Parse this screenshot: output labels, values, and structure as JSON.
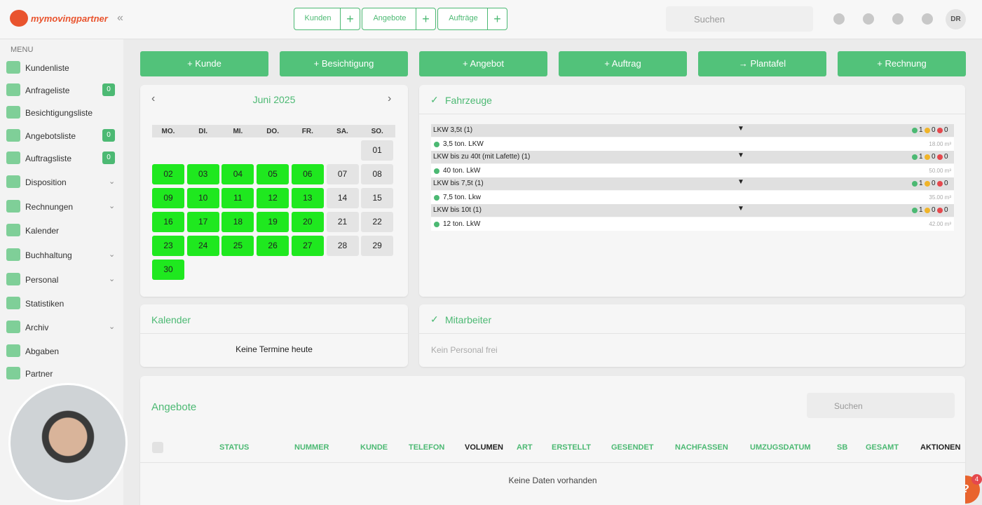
{
  "header": {
    "logo": "mymovingpartner",
    "collapse": "«",
    "tabs": [
      "Kunden",
      "Angebote",
      "Aufträge"
    ],
    "search": "Suchen",
    "avatar": "DR"
  },
  "sidebar": {
    "menu_label": "MENU",
    "items": [
      {
        "label": "Kundenliste"
      },
      {
        "label": "Anfrageliste",
        "badge": 0
      },
      {
        "label": "Besichtigungsliste"
      },
      {
        "label": "Angebotsliste",
        "badge": 0
      },
      {
        "label": "Auftragsliste",
        "badge": 0
      },
      {
        "label": "Disposition",
        "expandable": true
      },
      {
        "label": "Rechnungen",
        "expandable": true
      },
      {
        "label": "Kalender"
      },
      {
        "label": "Buchhaltung",
        "expandable": true
      },
      {
        "label": "Personal",
        "expandable": true
      },
      {
        "label": "Statistiken"
      },
      {
        "label": "Archiv",
        "expandable": true
      },
      {
        "label": "Abgaben"
      },
      {
        "label": "Partner"
      }
    ]
  },
  "actions": [
    "+ Kunde",
    "+ Besichtigung",
    "+ Angebot",
    "+ Auftrag",
    "→ Plantafel",
    "+ Rechnung"
  ],
  "calendar": {
    "month": "Juni 2025",
    "weekdays": [
      "MO.",
      "DI.",
      "MI.",
      "DO.",
      "FR.",
      "SA.",
      "SO."
    ],
    "leading_blanks": 6,
    "days": [
      {
        "label": "01",
        "busy": false
      },
      {
        "label": "02",
        "busy": true
      },
      {
        "label": "03",
        "busy": true
      },
      {
        "label": "04",
        "busy": true
      },
      {
        "label": "05",
        "busy": true
      },
      {
        "label": "06",
        "busy": true
      },
      {
        "label": "07",
        "busy": false
      },
      {
        "label": "08",
        "busy": false
      },
      {
        "label": "09",
        "busy": true
      },
      {
        "label": "10",
        "busy": true
      },
      {
        "label": "11",
        "busy": true
      },
      {
        "label": "12",
        "busy": true
      },
      {
        "label": "13",
        "busy": true
      },
      {
        "label": "14",
        "busy": false
      },
      {
        "label": "15",
        "busy": false
      },
      {
        "label": "16",
        "busy": true
      },
      {
        "label": "17",
        "busy": true
      },
      {
        "label": "18",
        "busy": true
      },
      {
        "label": "19",
        "busy": true
      },
      {
        "label": "20",
        "busy": true
      },
      {
        "label": "21",
        "busy": false
      },
      {
        "label": "22",
        "busy": false
      },
      {
        "label": "23",
        "busy": true
      },
      {
        "label": "24",
        "busy": true
      },
      {
        "label": "25",
        "busy": true
      },
      {
        "label": "26",
        "busy": true
      },
      {
        "label": "27",
        "busy": true
      },
      {
        "label": "28",
        "busy": false
      },
      {
        "label": "29",
        "busy": false
      },
      {
        "label": "30",
        "busy": true
      }
    ]
  },
  "vehicles": {
    "title": "Fahrzeuge",
    "groups": [
      {
        "name": "LKW 3,5t (1)",
        "green": 1,
        "yellow": 0,
        "red": 0,
        "vehicle": "3,5 ton. LKW",
        "volume": "18.00 m³"
      },
      {
        "name": "LKW bis zu 40t (mit Lafette) (1)",
        "green": 1,
        "yellow": 0,
        "red": 0,
        "vehicle": "40 ton. LkW",
        "volume": "50.00 m³"
      },
      {
        "name": "LKW bis 7,5t (1)",
        "green": 1,
        "yellow": 0,
        "red": 0,
        "vehicle": "7,5 ton. Lkw",
        "volume": "35.00 m³"
      },
      {
        "name": "LKW bis 10t (1)",
        "green": 1,
        "yellow": 0,
        "red": 0,
        "vehicle": "12 ton. LkW",
        "volume": "42.00 m³"
      }
    ]
  },
  "kalender": {
    "title": "Kalender",
    "empty": "Keine Termine heute"
  },
  "mitarbeiter": {
    "title": "Mitarbeiter",
    "empty": "Kein Personal frei"
  },
  "angebote": {
    "title": "Angebote",
    "search": "Suchen",
    "columns": [
      {
        "label": "STATUS"
      },
      {
        "label": "NUMMER"
      },
      {
        "label": "KUNDE"
      },
      {
        "label": "TELEFON"
      },
      {
        "label": "VOLUMEN",
        "dark": true
      },
      {
        "label": "ART"
      },
      {
        "label": "ERSTELLT"
      },
      {
        "label": "GESENDET"
      },
      {
        "label": "NACHFASSEN"
      },
      {
        "label": "UMZUGSDATUM"
      },
      {
        "label": "SB"
      },
      {
        "label": "GESAMT"
      },
      {
        "label": "AKTIONEN",
        "dark": true
      }
    ],
    "empty": "Keine Daten vorhanden"
  },
  "help_badge": 4
}
